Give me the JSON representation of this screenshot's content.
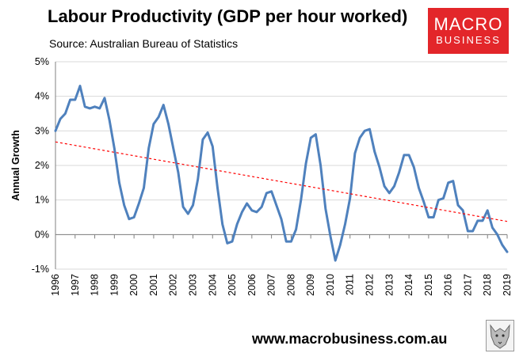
{
  "header": {
    "title": "Labour Productivity (GDP per hour worked)",
    "source": "Source: Australian Bureau of Statistics"
  },
  "logo": {
    "line1": "MACRO",
    "line2": "BUSINESS"
  },
  "footer": {
    "website": "www.macrobusiness.com.au"
  },
  "colors": {
    "series": "#4f81bd",
    "trend": "#ff0000",
    "logo_bg": "#e3262a"
  },
  "chart_data": {
    "type": "line",
    "title": "Labour Productivity (GDP per hour worked)",
    "xlabel": "",
    "ylabel": "Annual Growth",
    "ylim": [
      -1,
      5
    ],
    "xlim": [
      1996,
      2019
    ],
    "y_ticks": [
      -1,
      0,
      1,
      2,
      3,
      4,
      5
    ],
    "y_tick_labels": [
      "-1%",
      "0%",
      "1%",
      "2%",
      "3%",
      "4%",
      "5%"
    ],
    "x_tick_labels": [
      "1996",
      "1997",
      "1998",
      "1999",
      "2000",
      "2001",
      "2002",
      "2003",
      "2004",
      "2005",
      "2006",
      "2007",
      "2008",
      "2009",
      "2010",
      "2011",
      "2012",
      "2013",
      "2014",
      "2015",
      "2016",
      "2017",
      "2018",
      "2019"
    ],
    "grid": "horizontal",
    "series": [
      {
        "name": "Labour Productivity Annual Growth",
        "style": "solid",
        "x": [
          1996.0,
          1996.25,
          1996.5,
          1996.75,
          1997.0,
          1997.25,
          1997.5,
          1997.75,
          1998.0,
          1998.25,
          1998.5,
          1998.75,
          1999.0,
          1999.25,
          1999.5,
          1999.75,
          2000.0,
          2000.25,
          2000.5,
          2000.75,
          2001.0,
          2001.25,
          2001.5,
          2001.75,
          2002.0,
          2002.25,
          2002.5,
          2002.75,
          2003.0,
          2003.25,
          2003.5,
          2003.75,
          2004.0,
          2004.25,
          2004.5,
          2004.75,
          2005.0,
          2005.25,
          2005.5,
          2005.75,
          2006.0,
          2006.25,
          2006.5,
          2006.75,
          2007.0,
          2007.25,
          2007.5,
          2007.75,
          2008.0,
          2008.25,
          2008.5,
          2008.75,
          2009.0,
          2009.25,
          2009.5,
          2009.75,
          2010.0,
          2010.25,
          2010.5,
          2010.75,
          2011.0,
          2011.25,
          2011.5,
          2011.75,
          2012.0,
          2012.25,
          2012.5,
          2012.75,
          2013.0,
          2013.25,
          2013.5,
          2013.75,
          2014.0,
          2014.25,
          2014.5,
          2014.75,
          2015.0,
          2015.25,
          2015.5,
          2015.75,
          2016.0,
          2016.25,
          2016.5,
          2016.75,
          2017.0,
          2017.25,
          2017.5,
          2017.75,
          2018.0,
          2018.25,
          2018.5,
          2018.75,
          2019.0
        ],
        "values": [
          3.0,
          3.35,
          3.5,
          3.9,
          3.9,
          4.3,
          3.7,
          3.65,
          3.7,
          3.65,
          3.95,
          3.3,
          2.5,
          1.5,
          0.85,
          0.45,
          0.5,
          0.9,
          1.35,
          2.5,
          3.2,
          3.4,
          3.75,
          3.2,
          2.5,
          1.8,
          0.8,
          0.6,
          0.85,
          1.6,
          2.75,
          2.95,
          2.55,
          1.35,
          0.3,
          -0.25,
          -0.2,
          0.3,
          0.65,
          0.9,
          0.7,
          0.65,
          0.8,
          1.2,
          1.25,
          0.85,
          0.45,
          -0.2,
          -0.2,
          0.15,
          1.0,
          2.05,
          2.8,
          2.9,
          2.0,
          0.75,
          -0.05,
          -0.75,
          -0.3,
          0.3,
          1.05,
          2.35,
          2.8,
          3.0,
          3.05,
          2.4,
          1.95,
          1.4,
          1.2,
          1.4,
          1.8,
          2.3,
          2.3,
          1.95,
          1.35,
          0.95,
          0.5,
          0.5,
          1.0,
          1.05,
          1.5,
          1.55,
          0.85,
          0.7,
          0.1,
          0.1,
          0.4,
          0.4,
          0.7,
          0.2,
          0.0,
          -0.3,
          -0.5
        ]
      },
      {
        "name": "Linear trend",
        "style": "dashed",
        "x": [
          1996.0,
          2019.0
        ],
        "values": [
          2.68,
          0.38
        ]
      }
    ]
  }
}
